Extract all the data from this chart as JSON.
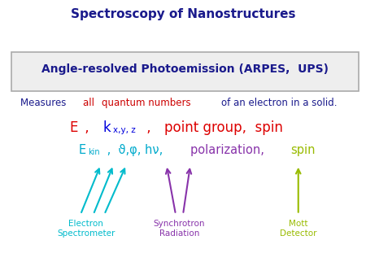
{
  "title": "Spectroscopy of Nanostructures",
  "title_color": "#1a1a8c",
  "title_fontsize": 11,
  "box_text": "Angle-resolved Photoemission (ARPES,  UPS)",
  "box_color": "#1a1a8c",
  "measures_parts": [
    {
      "text": "Measures ",
      "color": "#1a1a8c"
    },
    {
      "text": "all ",
      "color": "#cc0000"
    },
    {
      "text": "quantum numbers ",
      "color": "#cc0000"
    },
    {
      "text": "of an electron in a solid.",
      "color": "#1a1a8c"
    }
  ],
  "arrow_color_left": "#00bbcc",
  "arrow_color_mid": "#8833aa",
  "arrow_color_right": "#99bb00",
  "label_electron": "Electron\nSpectrometer",
  "label_synchrotron": "Synchrotron\nRadiation",
  "label_mott": "Mott\nDetector",
  "bg_color": "#ffffff"
}
